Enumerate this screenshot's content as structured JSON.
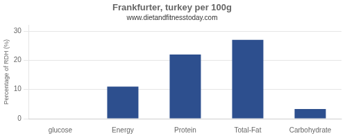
{
  "chart_data": {
    "type": "bar",
    "title": "Frankfurter, turkey per 100g",
    "subtitle": "www.dietandfitnesstoday.com",
    "categories": [
      "glucose",
      "Energy",
      "Protein",
      "Total-Fat",
      "Carbohydrate"
    ],
    "values": [
      0,
      11,
      22,
      27,
      3.3
    ],
    "color": "#2d4f8e",
    "ylabel": "Percentage of RDH (%)",
    "ylim": [
      0,
      32
    ],
    "yticks": [
      0,
      10,
      20,
      30
    ],
    "grid": true
  }
}
